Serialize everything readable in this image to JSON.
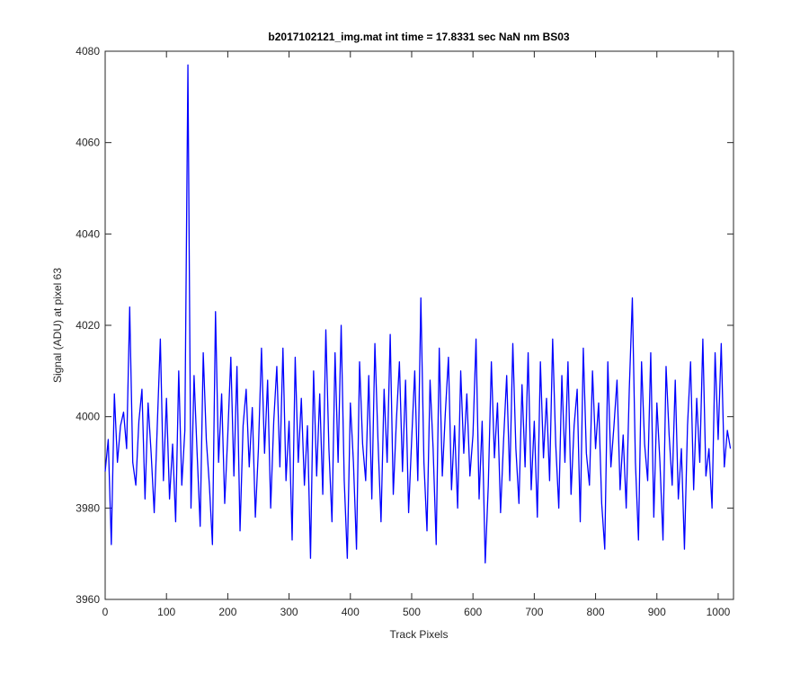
{
  "chart_data": {
    "type": "line",
    "title": "b2017102121_img.mat int time = 17.8331 sec  NaN nm BS03",
    "x_label": "Track Pixels",
    "y_label": "Signal (ADU) at pixel 63",
    "xlim": [
      0,
      1025
    ],
    "ylim": [
      3960,
      4080
    ],
    "xticks": [
      0,
      100,
      200,
      300,
      400,
      500,
      600,
      700,
      800,
      900,
      1000
    ],
    "yticks": [
      3960,
      3980,
      4000,
      4020,
      4040,
      4060,
      4080
    ],
    "grid": false,
    "x": [
      0,
      5,
      10,
      15,
      20,
      25,
      30,
      35,
      40,
      45,
      50,
      55,
      60,
      65,
      70,
      75,
      80,
      85,
      90,
      95,
      100,
      105,
      110,
      115,
      120,
      125,
      130,
      135,
      140,
      145,
      150,
      155,
      160,
      165,
      170,
      175,
      180,
      185,
      190,
      195,
      200,
      205,
      210,
      215,
      220,
      225,
      230,
      235,
      240,
      245,
      250,
      255,
      260,
      265,
      270,
      275,
      280,
      285,
      290,
      295,
      300,
      305,
      310,
      315,
      320,
      325,
      330,
      335,
      340,
      345,
      350,
      355,
      360,
      365,
      370,
      375,
      380,
      385,
      390,
      395,
      400,
      405,
      410,
      415,
      420,
      425,
      430,
      435,
      440,
      445,
      450,
      455,
      460,
      465,
      470,
      475,
      480,
      485,
      490,
      495,
      500,
      505,
      510,
      515,
      520,
      525,
      530,
      535,
      540,
      545,
      550,
      555,
      560,
      565,
      570,
      575,
      580,
      585,
      590,
      595,
      600,
      605,
      610,
      615,
      620,
      625,
      630,
      635,
      640,
      645,
      650,
      655,
      660,
      665,
      670,
      675,
      680,
      685,
      690,
      695,
      700,
      705,
      710,
      715,
      720,
      725,
      730,
      735,
      740,
      745,
      750,
      755,
      760,
      765,
      770,
      775,
      780,
      785,
      790,
      795,
      800,
      805,
      810,
      815,
      820,
      825,
      830,
      835,
      840,
      845,
      850,
      855,
      860,
      865,
      870,
      875,
      880,
      885,
      890,
      895,
      900,
      905,
      910,
      915,
      920,
      925,
      930,
      935,
      940,
      945,
      950,
      955,
      960,
      965,
      970,
      975,
      980,
      985,
      990,
      995,
      1000,
      1005,
      1010,
      1015,
      1020
    ],
    "series": [
      {
        "color": "#0000ff",
        "values": [
          3988,
          3995,
          3972,
          4005,
          3990,
          3998,
          4001,
          3993,
          4024,
          3990,
          3985,
          3999,
          4006,
          3982,
          4003,
          3992,
          3979,
          3998,
          4017,
          3986,
          4004,
          3982,
          3994,
          3977,
          4010,
          3985,
          3997,
          4077,
          3980,
          4009,
          3992,
          3976,
          4014,
          3995,
          3985,
          3972,
          4023,
          3990,
          4005,
          3981,
          3996,
          4013,
          3987,
          4011,
          3975,
          3998,
          4006,
          3989,
          4002,
          3978,
          3993,
          4015,
          3992,
          4008,
          3980,
          3999,
          4011,
          3989,
          4015,
          3986,
          3999,
          3973,
          4013,
          3990,
          4004,
          3985,
          3998,
          3969,
          4010,
          3987,
          4005,
          3983,
          4019,
          3993,
          3977,
          4014,
          3990,
          4020,
          3986,
          3969,
          4003,
          3990,
          3971,
          4012,
          3994,
          3986,
          4009,
          3982,
          4016,
          3995,
          3977,
          4006,
          3990,
          4018,
          3983,
          3999,
          4012,
          3988,
          4008,
          3979,
          3995,
          4010,
          3986,
          4026,
          3990,
          3975,
          4008,
          3993,
          3972,
          4015,
          3987,
          4001,
          4013,
          3984,
          3998,
          3980,
          4010,
          3992,
          4005,
          3987,
          3996,
          4017,
          3982,
          3999,
          3968,
          3985,
          4012,
          3991,
          4003,
          3979,
          3995,
          4009,
          3986,
          4016,
          3993,
          3981,
          4007,
          3989,
          4014,
          3984,
          3999,
          3978,
          4012,
          3991,
          4004,
          3986,
          4017,
          3994,
          3980,
          4009,
          3990,
          4012,
          3983,
          3998,
          4006,
          3977,
          4015,
          3992,
          3985,
          4010,
          3993,
          4003,
          3981,
          3971,
          4012,
          3989,
          3998,
          4008,
          3984,
          3996,
          3980,
          4006,
          4026,
          3990,
          3973,
          4012,
          3994,
          3986,
          4014,
          3978,
          4003,
          3990,
          3973,
          4011,
          3996,
          3985,
          4008,
          3982,
          3993,
          3971,
          3998,
          4012,
          3984,
          4004,
          3990,
          4017,
          3987,
          3993,
          3980,
          4014,
          3995,
          4016,
          3989,
          3997,
          3993
        ]
      }
    ]
  }
}
